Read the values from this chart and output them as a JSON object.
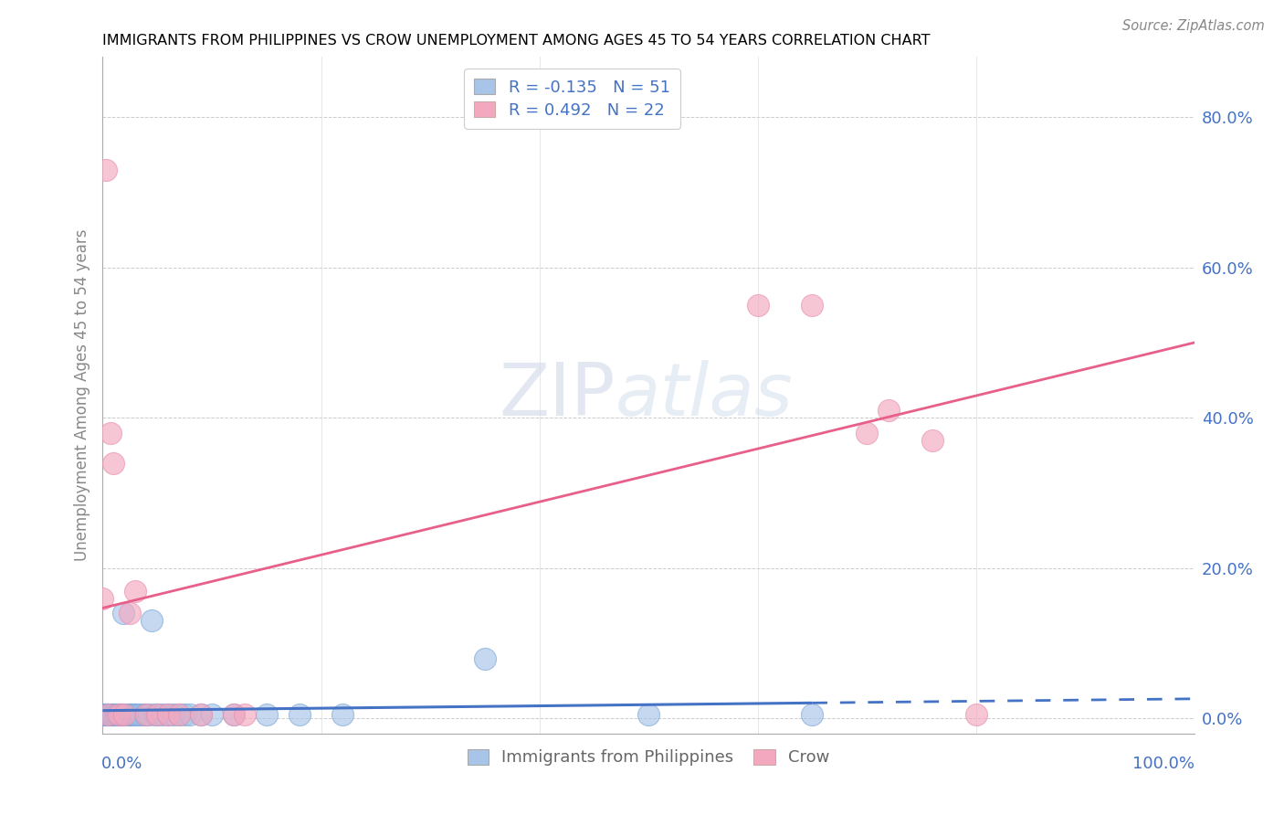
{
  "title": "IMMIGRANTS FROM PHILIPPINES VS CROW UNEMPLOYMENT AMONG AGES 45 TO 54 YEARS CORRELATION CHART",
  "source": "Source: ZipAtlas.com",
  "ylabel": "Unemployment Among Ages 45 to 54 years",
  "legend1_label": "Immigrants from Philippines",
  "legend2_label": "Crow",
  "R1": "-0.135",
  "N1": "51",
  "R2": "0.492",
  "N2": "22",
  "blue_color": "#a8c4e8",
  "pink_color": "#f4a8bf",
  "blue_line_color": "#4472c4",
  "pink_line_color": "#e8608a",
  "blue_x": [
    0.0,
    0.001,
    0.002,
    0.003,
    0.004,
    0.005,
    0.005,
    0.006,
    0.007,
    0.008,
    0.009,
    0.01,
    0.011,
    0.012,
    0.013,
    0.014,
    0.015,
    0.016,
    0.017,
    0.018,
    0.019,
    0.02,
    0.022,
    0.025,
    0.025,
    0.027,
    0.028,
    0.03,
    0.032,
    0.035,
    0.038,
    0.04,
    0.042,
    0.045,
    0.048,
    0.05,
    0.055,
    0.06,
    0.065,
    0.07,
    0.075,
    0.08,
    0.09,
    0.1,
    0.12,
    0.15,
    0.18,
    0.22,
    0.35,
    0.5,
    0.65
  ],
  "blue_y": [
    0.005,
    0.005,
    0.005,
    0.005,
    0.005,
    0.005,
    0.005,
    0.005,
    0.005,
    0.005,
    0.005,
    0.005,
    0.005,
    0.005,
    0.005,
    0.005,
    0.005,
    0.005,
    0.005,
    0.005,
    0.14,
    0.005,
    0.005,
    0.005,
    0.005,
    0.005,
    0.005,
    0.005,
    0.005,
    0.005,
    0.005,
    0.005,
    0.005,
    0.13,
    0.005,
    0.005,
    0.005,
    0.005,
    0.005,
    0.005,
    0.005,
    0.005,
    0.005,
    0.005,
    0.005,
    0.005,
    0.005,
    0.005,
    0.08,
    0.005,
    0.005
  ],
  "pink_x": [
    0.0,
    0.003,
    0.005,
    0.007,
    0.01,
    0.015,
    0.02,
    0.025,
    0.03,
    0.04,
    0.05,
    0.06,
    0.07,
    0.09,
    0.12,
    0.13,
    0.6,
    0.65,
    0.7,
    0.72,
    0.76,
    0.8
  ],
  "pink_y": [
    0.16,
    0.73,
    0.005,
    0.38,
    0.34,
    0.005,
    0.005,
    0.14,
    0.17,
    0.005,
    0.005,
    0.005,
    0.005,
    0.005,
    0.005,
    0.005,
    0.55,
    0.55,
    0.38,
    0.41,
    0.37,
    0.005
  ],
  "xlim": [
    0.0,
    1.0
  ],
  "ylim": [
    -0.02,
    0.88
  ],
  "yticks": [
    0.0,
    0.2,
    0.4,
    0.6,
    0.8
  ],
  "ytick_labels": [
    "0.0%",
    "20.0%",
    "40.0%",
    "60.0%",
    "80.0%"
  ],
  "pink_line_x0": 0.0,
  "pink_line_y0": 0.147,
  "pink_line_x1": 1.0,
  "pink_line_y1": 0.5
}
